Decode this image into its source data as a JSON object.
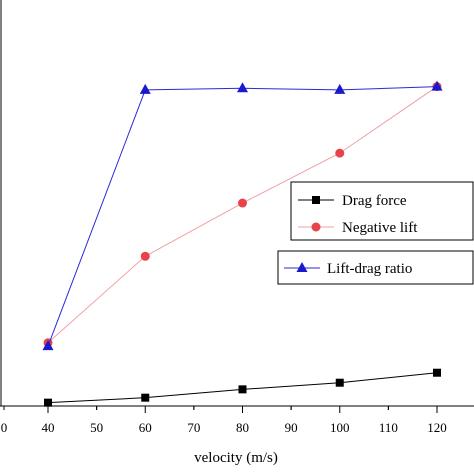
{
  "chart_data": {
    "type": "line",
    "xlabel": "velocity (m/s)",
    "ylabel": "",
    "title": "",
    "xlim": [
      30,
      125
    ],
    "x_ticks": [
      "0",
      "40",
      "50",
      "60",
      "70",
      "80",
      "90",
      "100",
      "110",
      "120"
    ],
    "ylim": [
      0,
      1.1
    ],
    "series": [
      {
        "name": "Drag force",
        "marker": "square",
        "color": "#000000",
        "x": [
          40,
          60,
          80,
          100,
          120
        ],
        "values": [
          0.01,
          0.025,
          0.05,
          0.07,
          0.1
        ]
      },
      {
        "name": "Negative lift",
        "marker": "circle",
        "color": "#e8434a",
        "x": [
          40,
          60,
          80,
          100,
          120
        ],
        "values": [
          0.19,
          0.45,
          0.61,
          0.76,
          0.96
        ]
      },
      {
        "name": "Lift-drag ratio",
        "marker": "triangle",
        "color": "#1a1acc",
        "x": [
          40,
          60,
          80,
          100,
          120
        ],
        "values": [
          0.18,
          0.95,
          0.955,
          0.95,
          0.96
        ]
      }
    ]
  }
}
